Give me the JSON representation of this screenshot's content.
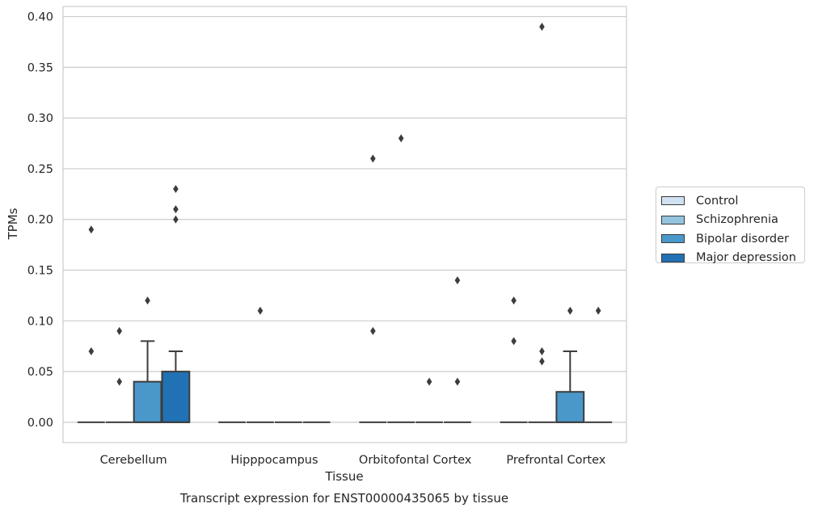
{
  "chart_data": {
    "type": "box",
    "xlabel": "Tissue",
    "ylabel": "TPMs",
    "caption": "Transcript expression for ENST00000435065 by tissue",
    "ylim": [
      -0.02,
      0.41
    ],
    "yticks": [
      0.0,
      0.05,
      0.1,
      0.15,
      0.2,
      0.25,
      0.3,
      0.35,
      0.4
    ],
    "ytick_labels": [
      "0.00",
      "0.05",
      "0.10",
      "0.15",
      "0.20",
      "0.25",
      "0.30",
      "0.35",
      "0.40"
    ],
    "grid": "horizontal",
    "legend_position": "right",
    "categories": [
      "Cerebellum",
      "Hipppocampus",
      "Orbitofontal Cortex",
      "Prefrontal Cortex"
    ],
    "series": [
      {
        "name": "Control",
        "color": "#d0e1f2",
        "boxes": [
          {
            "q1": 0,
            "median": 0,
            "q3": 0,
            "whisker_low": 0,
            "whisker_high": 0,
            "outliers": [
              0.19,
              0.07
            ]
          },
          {
            "q1": 0,
            "median": 0,
            "q3": 0,
            "whisker_low": 0,
            "whisker_high": 0,
            "outliers": []
          },
          {
            "q1": 0,
            "median": 0,
            "q3": 0,
            "whisker_low": 0,
            "whisker_high": 0,
            "outliers": [
              0.26,
              0.09
            ]
          },
          {
            "q1": 0,
            "median": 0,
            "q3": 0,
            "whisker_low": 0,
            "whisker_high": 0,
            "outliers": [
              0.12,
              0.08
            ]
          }
        ]
      },
      {
        "name": "Schizophrenia",
        "color": "#94c4df",
        "boxes": [
          {
            "q1": 0,
            "median": 0,
            "q3": 0,
            "whisker_low": 0,
            "whisker_high": 0,
            "outliers": [
              0.09,
              0.04
            ]
          },
          {
            "q1": 0,
            "median": 0,
            "q3": 0,
            "whisker_low": 0,
            "whisker_high": 0,
            "outliers": [
              0.11
            ]
          },
          {
            "q1": 0,
            "median": 0,
            "q3": 0,
            "whisker_low": 0,
            "whisker_high": 0,
            "outliers": [
              0.28
            ]
          },
          {
            "q1": 0,
            "median": 0,
            "q3": 0,
            "whisker_low": 0,
            "whisker_high": 0,
            "outliers": [
              0.39,
              0.07,
              0.06
            ]
          }
        ]
      },
      {
        "name": "Bipolar disorder",
        "color": "#4a98c9",
        "boxes": [
          {
            "q1": 0,
            "median": 0,
            "q3": 0.04,
            "whisker_low": 0,
            "whisker_high": 0.08,
            "outliers": [
              0.12
            ]
          },
          {
            "q1": 0,
            "median": 0,
            "q3": 0,
            "whisker_low": 0,
            "whisker_high": 0,
            "outliers": []
          },
          {
            "q1": 0,
            "median": 0,
            "q3": 0,
            "whisker_low": 0,
            "whisker_high": 0,
            "outliers": [
              0.04
            ]
          },
          {
            "q1": 0,
            "median": 0,
            "q3": 0.03,
            "whisker_low": 0,
            "whisker_high": 0.07,
            "outliers": [
              0.11
            ]
          }
        ]
      },
      {
        "name": "Major depression",
        "color": "#2171b5",
        "boxes": [
          {
            "q1": 0,
            "median": 0,
            "q3": 0.05,
            "whisker_low": 0,
            "whisker_high": 0.07,
            "outliers": [
              0.23,
              0.21,
              0.2
            ]
          },
          {
            "q1": 0,
            "median": 0,
            "q3": 0,
            "whisker_low": 0,
            "whisker_high": 0,
            "outliers": []
          },
          {
            "q1": 0,
            "median": 0,
            "q3": 0,
            "whisker_low": 0,
            "whisker_high": 0,
            "outliers": [
              0.14,
              0.04
            ]
          },
          {
            "q1": 0,
            "median": 0,
            "q3": 0,
            "whisker_low": 0,
            "whisker_high": 0,
            "outliers": [
              0.11
            ]
          }
        ]
      }
    ]
  }
}
